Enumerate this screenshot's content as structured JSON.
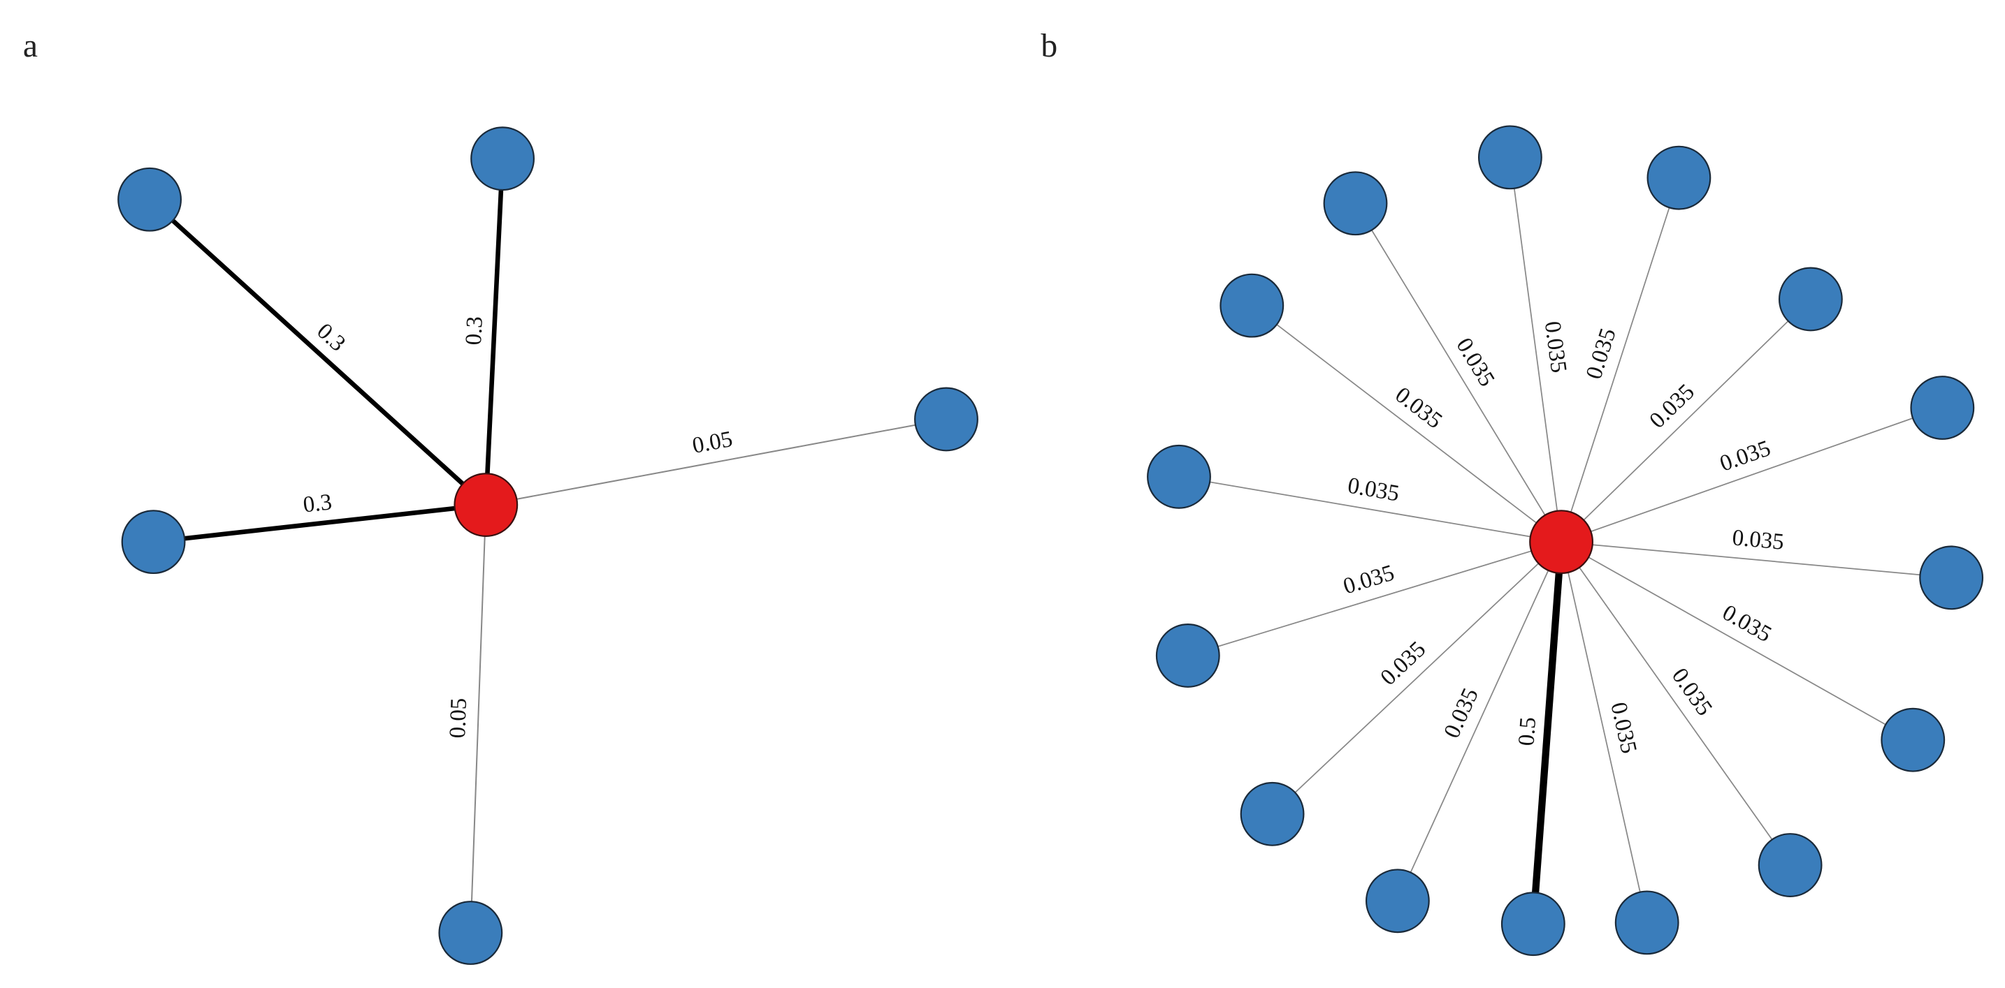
{
  "panels": [
    {
      "label": "a",
      "edges": [
        {
          "label": "0.3"
        },
        {
          "label": "0.3"
        },
        {
          "label": "0.05"
        },
        {
          "label": "0.3"
        },
        {
          "label": "0.05"
        }
      ]
    },
    {
      "label": "b",
      "edges": [
        {
          "label": "0.035"
        },
        {
          "label": "0.035"
        },
        {
          "label": "0.035"
        },
        {
          "label": "0.035"
        },
        {
          "label": "0.035"
        },
        {
          "label": "0.035"
        },
        {
          "label": "0.035"
        },
        {
          "label": "0.035"
        },
        {
          "label": "0.035"
        },
        {
          "label": "0.5"
        },
        {
          "label": "0.035"
        },
        {
          "label": "0.035"
        },
        {
          "label": "0.035"
        },
        {
          "label": "0.035"
        },
        {
          "label": "0.035"
        }
      ]
    }
  ]
}
